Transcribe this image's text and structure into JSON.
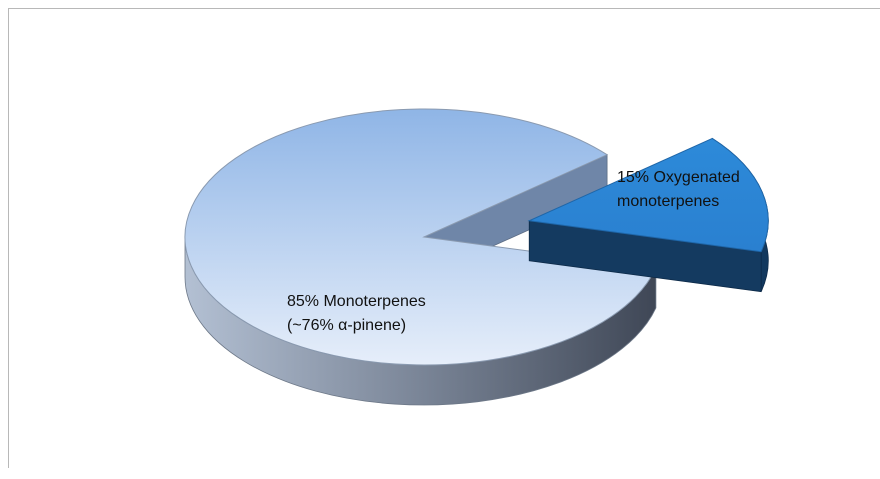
{
  "chart_data": {
    "type": "pie",
    "style": "3d-exploded",
    "slices": [
      {
        "value": 85,
        "label_lines": [
          "85%  Monoterpenes",
          "(~76% α-pinene)"
        ],
        "color": "#bcd4f2"
      },
      {
        "value": 15,
        "label_lines": [
          "15% Oxygenated",
          "monoterpenes"
        ],
        "color": "#2a86d6"
      }
    ],
    "legend": "none",
    "title": ""
  }
}
